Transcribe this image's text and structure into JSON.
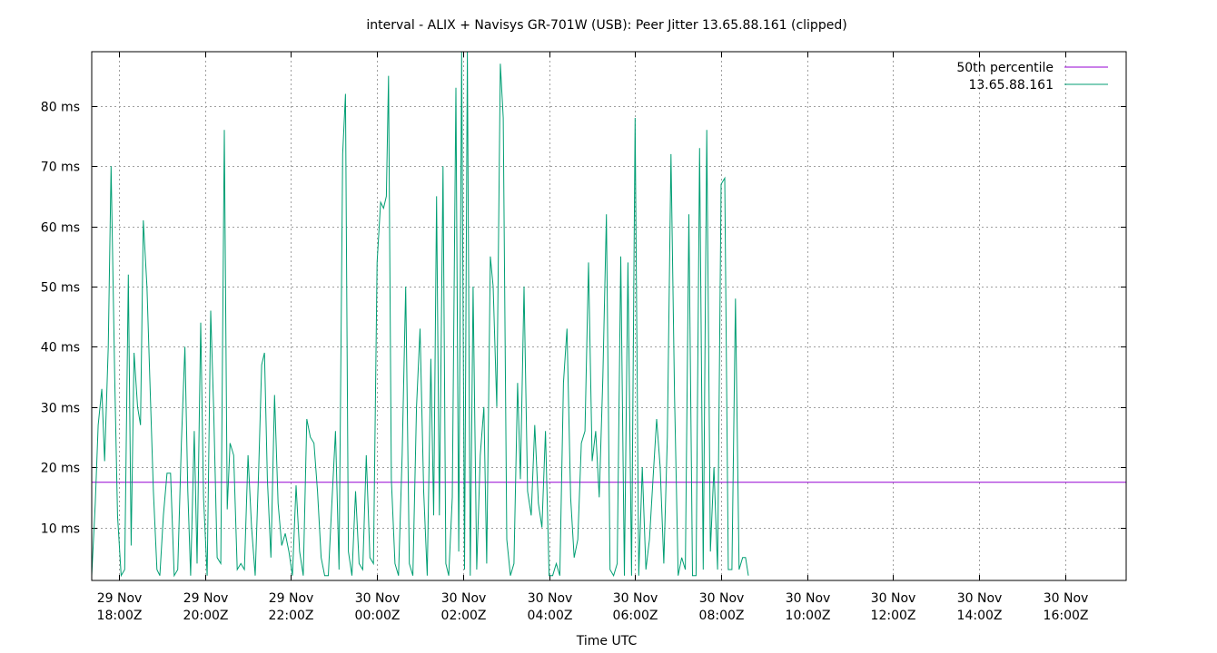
{
  "chart_data": {
    "type": "line",
    "title": "interval - ALIX + Navisys GR-701W (USB): Peer Jitter 13.65.88.161 (clipped)",
    "xlabel": "Time UTC",
    "ylabel": "",
    "y_unit": "ms",
    "ylim": [
      1.2,
      89
    ],
    "xlim": [
      "2023-11-29T17:22Z",
      "2023-11-30T17:25Z"
    ],
    "grid": true,
    "legend_position": "top-right",
    "y_ticks": [
      {
        "value": 10,
        "label": "10 ms"
      },
      {
        "value": 20,
        "label": "20 ms"
      },
      {
        "value": 30,
        "label": "30 ms"
      },
      {
        "value": 40,
        "label": "40 ms"
      },
      {
        "value": 50,
        "label": "50 ms"
      },
      {
        "value": 60,
        "label": "60 ms"
      },
      {
        "value": 70,
        "label": "70 ms"
      },
      {
        "value": 80,
        "label": "80 ms"
      }
    ],
    "x_ticks": [
      {
        "value": "2023-11-29T18:00Z",
        "line1": "29 Nov",
        "line2": "18:00Z"
      },
      {
        "value": "2023-11-29T20:00Z",
        "line1": "29 Nov",
        "line2": "20:00Z"
      },
      {
        "value": "2023-11-29T22:00Z",
        "line1": "29 Nov",
        "line2": "22:00Z"
      },
      {
        "value": "2023-11-30T00:00Z",
        "line1": "30 Nov",
        "line2": "00:00Z"
      },
      {
        "value": "2023-11-30T02:00Z",
        "line1": "30 Nov",
        "line2": "02:00Z"
      },
      {
        "value": "2023-11-30T04:00Z",
        "line1": "30 Nov",
        "line2": "04:00Z"
      },
      {
        "value": "2023-11-30T06:00Z",
        "line1": "30 Nov",
        "line2": "06:00Z"
      },
      {
        "value": "2023-11-30T08:00Z",
        "line1": "30 Nov",
        "line2": "08:00Z"
      },
      {
        "value": "2023-11-30T10:00Z",
        "line1": "30 Nov",
        "line2": "10:00Z"
      },
      {
        "value": "2023-11-30T12:00Z",
        "line1": "30 Nov",
        "line2": "12:00Z"
      },
      {
        "value": "2023-11-30T14:00Z",
        "line1": "30 Nov",
        "line2": "14:00Z"
      },
      {
        "value": "2023-11-30T16:00Z",
        "line1": "30 Nov",
        "line2": "16:00Z"
      }
    ],
    "series": [
      {
        "name": "50th percentile",
        "color": "#9400d3",
        "type": "constant",
        "value": 17.5
      },
      {
        "name": "13.65.88.161",
        "color": "#009e73",
        "points": [
          [
            "2023-11-29T17:22Z",
            2
          ],
          [
            "2023-11-29T17:27Z",
            14
          ],
          [
            "2023-11-29T17:31Z",
            27
          ],
          [
            "2023-11-29T17:36Z",
            33
          ],
          [
            "2023-11-29T17:40Z",
            21
          ],
          [
            "2023-11-29T17:45Z",
            40
          ],
          [
            "2023-11-29T17:49Z",
            70
          ],
          [
            "2023-11-29T17:54Z",
            35
          ],
          [
            "2023-11-29T17:58Z",
            12
          ],
          [
            "2023-11-29T18:03Z",
            2
          ],
          [
            "2023-11-29T18:08Z",
            3
          ],
          [
            "2023-11-29T18:13Z",
            52
          ],
          [
            "2023-11-29T18:17Z",
            7
          ],
          [
            "2023-11-29T18:21Z",
            39
          ],
          [
            "2023-11-29T18:26Z",
            30
          ],
          [
            "2023-11-29T18:30Z",
            27
          ],
          [
            "2023-11-29T18:34Z",
            61
          ],
          [
            "2023-11-29T18:39Z",
            50
          ],
          [
            "2023-11-29T18:43Z",
            35
          ],
          [
            "2023-11-29T18:48Z",
            16
          ],
          [
            "2023-11-29T18:53Z",
            3
          ],
          [
            "2023-11-29T18:57Z",
            2
          ],
          [
            "2023-11-29T19:02Z",
            12
          ],
          [
            "2023-11-29T19:07Z",
            19
          ],
          [
            "2023-11-29T19:12Z",
            19
          ],
          [
            "2023-11-29T19:17Z",
            2
          ],
          [
            "2023-11-29T19:22Z",
            3
          ],
          [
            "2023-11-29T19:27Z",
            24
          ],
          [
            "2023-11-29T19:32Z",
            40
          ],
          [
            "2023-11-29T19:36Z",
            16
          ],
          [
            "2023-11-29T19:40Z",
            2
          ],
          [
            "2023-11-29T19:45Z",
            26
          ],
          [
            "2023-11-29T19:49Z",
            4
          ],
          [
            "2023-11-29T19:54Z",
            44
          ],
          [
            "2023-11-29T19:58Z",
            15
          ],
          [
            "2023-11-29T20:03Z",
            2
          ],
          [
            "2023-11-29T20:08Z",
            46
          ],
          [
            "2023-11-29T20:12Z",
            30
          ],
          [
            "2023-11-29T20:17Z",
            5
          ],
          [
            "2023-11-29T20:22Z",
            4
          ],
          [
            "2023-11-29T20:27Z",
            76
          ],
          [
            "2023-11-29T20:31Z",
            13
          ],
          [
            "2023-11-29T20:35Z",
            24
          ],
          [
            "2023-11-29T20:40Z",
            22
          ],
          [
            "2023-11-29T20:45Z",
            3
          ],
          [
            "2023-11-29T20:50Z",
            4
          ],
          [
            "2023-11-29T20:55Z",
            3
          ],
          [
            "2023-11-29T21:00Z",
            22
          ],
          [
            "2023-11-29T21:05Z",
            10
          ],
          [
            "2023-11-29T21:10Z",
            2
          ],
          [
            "2023-11-29T21:15Z",
            20
          ],
          [
            "2023-11-29T21:19Z",
            37
          ],
          [
            "2023-11-29T21:23Z",
            39
          ],
          [
            "2023-11-29T21:27Z",
            18
          ],
          [
            "2023-11-29T21:32Z",
            5
          ],
          [
            "2023-11-29T21:37Z",
            32
          ],
          [
            "2023-11-29T21:42Z",
            14
          ],
          [
            "2023-11-29T21:47Z",
            7
          ],
          [
            "2023-11-29T21:52Z",
            9
          ],
          [
            "2023-11-29T21:57Z",
            6
          ],
          [
            "2023-11-29T22:02Z",
            2
          ],
          [
            "2023-11-29T22:07Z",
            17
          ],
          [
            "2023-11-29T22:12Z",
            6
          ],
          [
            "2023-11-29T22:17Z",
            2
          ],
          [
            "2023-11-29T22:22Z",
            28
          ],
          [
            "2023-11-29T22:27Z",
            25
          ],
          [
            "2023-11-29T22:32Z",
            24
          ],
          [
            "2023-11-29T22:37Z",
            16
          ],
          [
            "2023-11-29T22:42Z",
            5
          ],
          [
            "2023-11-29T22:47Z",
            2
          ],
          [
            "2023-11-29T22:52Z",
            2
          ],
          [
            "2023-11-29T22:57Z",
            14
          ],
          [
            "2023-11-29T23:02Z",
            26
          ],
          [
            "2023-11-29T23:07Z",
            3
          ],
          [
            "2023-11-29T23:12Z",
            72
          ],
          [
            "2023-11-29T23:16Z",
            82
          ],
          [
            "2023-11-29T23:20Z",
            6
          ],
          [
            "2023-11-29T23:25Z",
            2
          ],
          [
            "2023-11-29T23:30Z",
            16
          ],
          [
            "2023-11-29T23:35Z",
            4
          ],
          [
            "2023-11-29T23:40Z",
            3
          ],
          [
            "2023-11-29T23:45Z",
            22
          ],
          [
            "2023-11-29T23:50Z",
            5
          ],
          [
            "2023-11-29T23:55Z",
            4
          ],
          [
            "2023-11-30T00:00Z",
            54
          ],
          [
            "2023-11-30T00:05Z",
            64
          ],
          [
            "2023-11-30T00:09Z",
            63
          ],
          [
            "2023-11-30T00:13Z",
            65
          ],
          [
            "2023-11-30T00:16Z",
            85
          ],
          [
            "2023-11-30T00:20Z",
            18
          ],
          [
            "2023-11-30T00:25Z",
            4
          ],
          [
            "2023-11-30T00:30Z",
            2
          ],
          [
            "2023-11-30T00:35Z",
            22
          ],
          [
            "2023-11-30T00:40Z",
            50
          ],
          [
            "2023-11-30T00:45Z",
            4
          ],
          [
            "2023-11-30T00:50Z",
            2
          ],
          [
            "2023-11-30T00:55Z",
            30
          ],
          [
            "2023-11-30T01:00Z",
            43
          ],
          [
            "2023-11-30T01:05Z",
            16
          ],
          [
            "2023-11-30T01:10Z",
            2
          ],
          [
            "2023-11-30T01:15Z",
            38
          ],
          [
            "2023-11-30T01:19Z",
            12
          ],
          [
            "2023-11-30T01:23Z",
            65
          ],
          [
            "2023-11-30T01:27Z",
            12
          ],
          [
            "2023-11-30T01:32Z",
            70
          ],
          [
            "2023-11-30T01:36Z",
            4
          ],
          [
            "2023-11-30T01:40Z",
            2
          ],
          [
            "2023-11-30T01:45Z",
            15
          ],
          [
            "2023-11-30T01:50Z",
            83
          ],
          [
            "2023-11-30T01:54Z",
            6
          ],
          [
            "2023-11-30T01:58Z",
            89
          ],
          [
            "2023-11-30T02:02Z",
            3
          ],
          [
            "2023-11-30T02:06Z",
            89
          ],
          [
            "2023-11-30T02:10Z",
            2
          ],
          [
            "2023-11-30T02:14Z",
            50
          ],
          [
            "2023-11-30T02:19Z",
            3
          ],
          [
            "2023-11-30T02:24Z",
            22
          ],
          [
            "2023-11-30T02:29Z",
            30
          ],
          [
            "2023-11-30T02:33Z",
            4
          ],
          [
            "2023-11-30T02:38Z",
            55
          ],
          [
            "2023-11-30T02:42Z",
            50
          ],
          [
            "2023-11-30T02:47Z",
            30
          ],
          [
            "2023-11-30T02:52Z",
            87
          ],
          [
            "2023-11-30T02:56Z",
            78
          ],
          [
            "2023-11-30T03:01Z",
            8
          ],
          [
            "2023-11-30T03:06Z",
            2
          ],
          [
            "2023-11-30T03:11Z",
            4
          ],
          [
            "2023-11-30T03:16Z",
            34
          ],
          [
            "2023-11-30T03:20Z",
            18
          ],
          [
            "2023-11-30T03:25Z",
            50
          ],
          [
            "2023-11-30T03:30Z",
            16
          ],
          [
            "2023-11-30T03:35Z",
            12
          ],
          [
            "2023-11-30T03:40Z",
            27
          ],
          [
            "2023-11-30T03:45Z",
            14
          ],
          [
            "2023-11-30T03:50Z",
            10
          ],
          [
            "2023-11-30T03:55Z",
            26
          ],
          [
            "2023-11-30T04:00Z",
            2
          ],
          [
            "2023-11-30T04:05Z",
            2
          ],
          [
            "2023-11-30T04:10Z",
            4
          ],
          [
            "2023-11-30T04:15Z",
            2
          ],
          [
            "2023-11-30T04:20Z",
            34
          ],
          [
            "2023-11-30T04:25Z",
            43
          ],
          [
            "2023-11-30T04:30Z",
            15
          ],
          [
            "2023-11-30T04:35Z",
            5
          ],
          [
            "2023-11-30T04:40Z",
            8
          ],
          [
            "2023-11-30T04:45Z",
            24
          ],
          [
            "2023-11-30T04:50Z",
            26
          ],
          [
            "2023-11-30T04:55Z",
            54
          ],
          [
            "2023-11-30T05:00Z",
            21
          ],
          [
            "2023-11-30T05:05Z",
            26
          ],
          [
            "2023-11-30T05:10Z",
            15
          ],
          [
            "2023-11-30T05:15Z",
            35
          ],
          [
            "2023-11-30T05:20Z",
            62
          ],
          [
            "2023-11-30T05:25Z",
            3
          ],
          [
            "2023-11-30T05:30Z",
            2
          ],
          [
            "2023-11-30T05:35Z",
            4
          ],
          [
            "2023-11-30T05:40Z",
            55
          ],
          [
            "2023-11-30T05:45Z",
            2
          ],
          [
            "2023-11-30T05:50Z",
            54
          ],
          [
            "2023-11-30T05:55Z",
            2
          ],
          [
            "2023-11-30T06:00Z",
            78
          ],
          [
            "2023-11-30T06:05Z",
            2
          ],
          [
            "2023-11-30T06:10Z",
            20
          ],
          [
            "2023-11-30T06:15Z",
            3
          ],
          [
            "2023-11-30T06:20Z",
            8
          ],
          [
            "2023-11-30T06:25Z",
            18
          ],
          [
            "2023-11-30T06:30Z",
            28
          ],
          [
            "2023-11-30T06:35Z",
            20
          ],
          [
            "2023-11-30T06:40Z",
            4
          ],
          [
            "2023-11-30T06:45Z",
            25
          ],
          [
            "2023-11-30T06:50Z",
            72
          ],
          [
            "2023-11-30T06:55Z",
            32
          ],
          [
            "2023-11-30T07:00Z",
            2
          ],
          [
            "2023-11-30T07:05Z",
            5
          ],
          [
            "2023-11-30T07:10Z",
            3
          ],
          [
            "2023-11-30T07:15Z",
            62
          ],
          [
            "2023-11-30T07:20Z",
            2
          ],
          [
            "2023-11-30T07:25Z",
            2
          ],
          [
            "2023-11-30T07:30Z",
            73
          ],
          [
            "2023-11-30T07:35Z",
            3
          ],
          [
            "2023-11-30T07:40Z",
            76
          ],
          [
            "2023-11-30T07:45Z",
            6
          ],
          [
            "2023-11-30T07:50Z",
            20
          ],
          [
            "2023-11-30T07:55Z",
            3
          ],
          [
            "2023-11-30T08:00Z",
            67
          ],
          [
            "2023-11-30T08:05Z",
            68
          ],
          [
            "2023-11-30T08:10Z",
            3
          ],
          [
            "2023-11-30T08:15Z",
            3
          ],
          [
            "2023-11-30T08:20Z",
            48
          ],
          [
            "2023-11-30T08:25Z",
            3
          ],
          [
            "2023-11-30T08:30Z",
            5
          ],
          [
            "2023-11-30T08:34Z",
            5
          ],
          [
            "2023-11-30T08:38Z",
            2
          ]
        ]
      }
    ]
  }
}
